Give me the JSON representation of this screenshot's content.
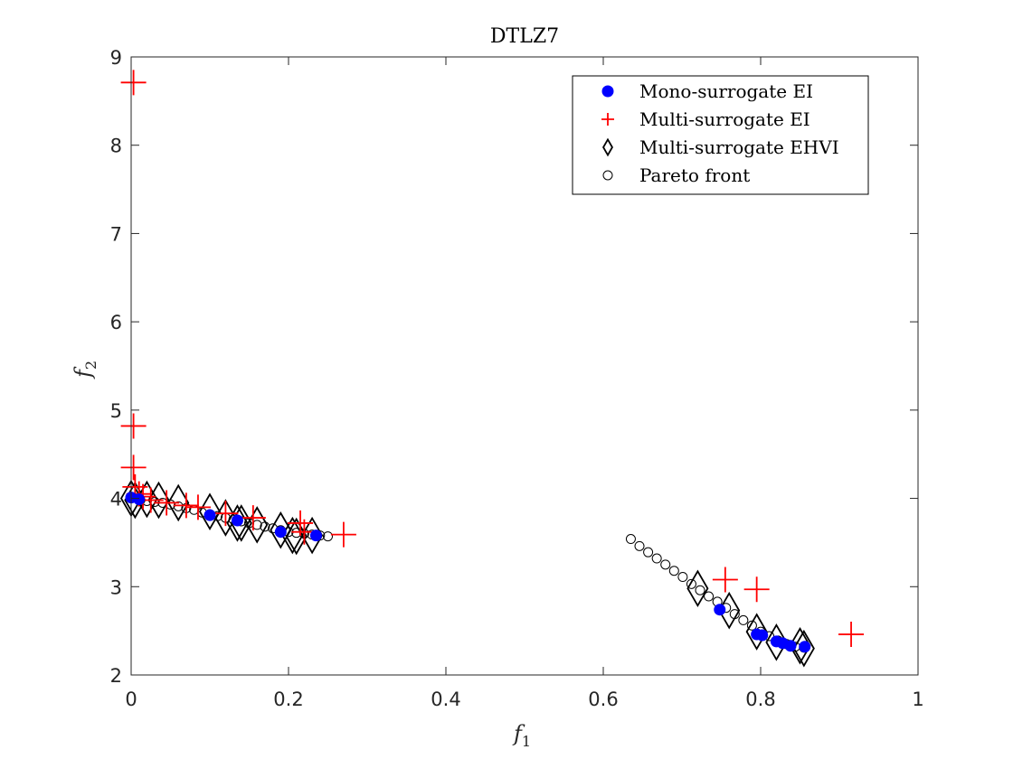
{
  "chart_data": {
    "type": "scatter",
    "title": "DTLZ7",
    "xlabel": "f",
    "xlabel_sub": "1",
    "ylabel": "f",
    "ylabel_sub": "2",
    "xlim": [
      0,
      1
    ],
    "ylim": [
      2,
      9
    ],
    "xticks": [
      0,
      0.2,
      0.4,
      0.6,
      0.8,
      1
    ],
    "xtick_labels": [
      "0",
      "0.2",
      "0.4",
      "0.6",
      "0.8",
      "1"
    ],
    "yticks": [
      2,
      3,
      4,
      5,
      6,
      7,
      8,
      9
    ],
    "ytick_labels": [
      "2",
      "3",
      "4",
      "5",
      "6",
      "7",
      "8",
      "9"
    ],
    "grid": false,
    "legend_position": "top-right",
    "colors": {
      "mono": "#0000ff",
      "multi_ei": "#ff0000",
      "ehvi": "#000000",
      "pareto": "#000000",
      "axis": "#262626"
    },
    "series": [
      {
        "name": "Pareto front",
        "marker": "open-circle",
        "points": [
          [
            0.0,
            4.0
          ],
          [
            0.01,
            3.98
          ],
          [
            0.02,
            3.97
          ],
          [
            0.03,
            3.96
          ],
          [
            0.04,
            3.95
          ],
          [
            0.05,
            3.93
          ],
          [
            0.06,
            3.91
          ],
          [
            0.07,
            3.89
          ],
          [
            0.08,
            3.87
          ],
          [
            0.09,
            3.84
          ],
          [
            0.1,
            3.82
          ],
          [
            0.11,
            3.8
          ],
          [
            0.12,
            3.78
          ],
          [
            0.13,
            3.76
          ],
          [
            0.14,
            3.74
          ],
          [
            0.15,
            3.72
          ],
          [
            0.16,
            3.7
          ],
          [
            0.17,
            3.68
          ],
          [
            0.18,
            3.66
          ],
          [
            0.19,
            3.64
          ],
          [
            0.2,
            3.62
          ],
          [
            0.21,
            3.61
          ],
          [
            0.22,
            3.6
          ],
          [
            0.23,
            3.59
          ],
          [
            0.24,
            3.58
          ],
          [
            0.25,
            3.57
          ],
          [
            0.635,
            3.54
          ],
          [
            0.646,
            3.46
          ],
          [
            0.657,
            3.39
          ],
          [
            0.668,
            3.32
          ],
          [
            0.679,
            3.25
          ],
          [
            0.69,
            3.18
          ],
          [
            0.701,
            3.11
          ],
          [
            0.712,
            3.03
          ],
          [
            0.723,
            2.96
          ],
          [
            0.734,
            2.89
          ],
          [
            0.745,
            2.83
          ],
          [
            0.756,
            2.76
          ],
          [
            0.767,
            2.69
          ],
          [
            0.778,
            2.62
          ],
          [
            0.789,
            2.56
          ],
          [
            0.8,
            2.49
          ],
          [
            0.811,
            2.44
          ],
          [
            0.822,
            2.39
          ],
          [
            0.833,
            2.35
          ],
          [
            0.844,
            2.32
          ],
          [
            0.855,
            2.31
          ]
        ]
      },
      {
        "name": "Multi-surrogate EHVI",
        "marker": "diamond",
        "points": [
          [
            0.0,
            4.0
          ],
          [
            0.005,
            3.98
          ],
          [
            0.02,
            3.99
          ],
          [
            0.035,
            3.98
          ],
          [
            0.06,
            3.95
          ],
          [
            0.1,
            3.85
          ],
          [
            0.12,
            3.78
          ],
          [
            0.135,
            3.72
          ],
          [
            0.14,
            3.72
          ],
          [
            0.16,
            3.7
          ],
          [
            0.19,
            3.64
          ],
          [
            0.205,
            3.58
          ],
          [
            0.21,
            3.57
          ],
          [
            0.23,
            3.58
          ],
          [
            0.72,
            2.98
          ],
          [
            0.76,
            2.73
          ],
          [
            0.795,
            2.49
          ],
          [
            0.82,
            2.37
          ],
          [
            0.85,
            2.33
          ],
          [
            0.855,
            2.3
          ]
        ]
      },
      {
        "name": "Multi-surrogate EI",
        "marker": "plus",
        "points": [
          [
            0.003,
            8.71
          ],
          [
            0.003,
            4.82
          ],
          [
            0.003,
            4.35
          ],
          [
            0.005,
            4.13
          ],
          [
            0.01,
            4.05
          ],
          [
            0.015,
            4.02
          ],
          [
            0.025,
            3.98
          ],
          [
            0.045,
            3.95
          ],
          [
            0.07,
            3.92
          ],
          [
            0.085,
            3.9
          ],
          [
            0.12,
            3.83
          ],
          [
            0.155,
            3.78
          ],
          [
            0.215,
            3.72
          ],
          [
            0.22,
            3.62
          ],
          [
            0.27,
            3.59
          ],
          [
            0.755,
            3.08
          ],
          [
            0.795,
            2.97
          ],
          [
            0.915,
            2.46
          ]
        ]
      },
      {
        "name": "Mono-surrogate EI",
        "marker": "filled-circle",
        "points": [
          [
            0.0,
            4.01
          ],
          [
            0.01,
            3.99
          ],
          [
            0.1,
            3.81
          ],
          [
            0.135,
            3.75
          ],
          [
            0.19,
            3.62
          ],
          [
            0.235,
            3.58
          ],
          [
            0.748,
            2.74
          ],
          [
            0.795,
            2.46
          ],
          [
            0.802,
            2.45
          ],
          [
            0.82,
            2.38
          ],
          [
            0.828,
            2.36
          ],
          [
            0.838,
            2.33
          ],
          [
            0.856,
            2.32
          ]
        ]
      }
    ],
    "legend": [
      {
        "label": "Mono-surrogate EI",
        "marker": "filled-circle"
      },
      {
        "label": "Multi-surrogate EI",
        "marker": "plus"
      },
      {
        "label": "Multi-surrogate EHVI",
        "marker": "diamond"
      },
      {
        "label": "Pareto front",
        "marker": "open-circle"
      }
    ]
  }
}
